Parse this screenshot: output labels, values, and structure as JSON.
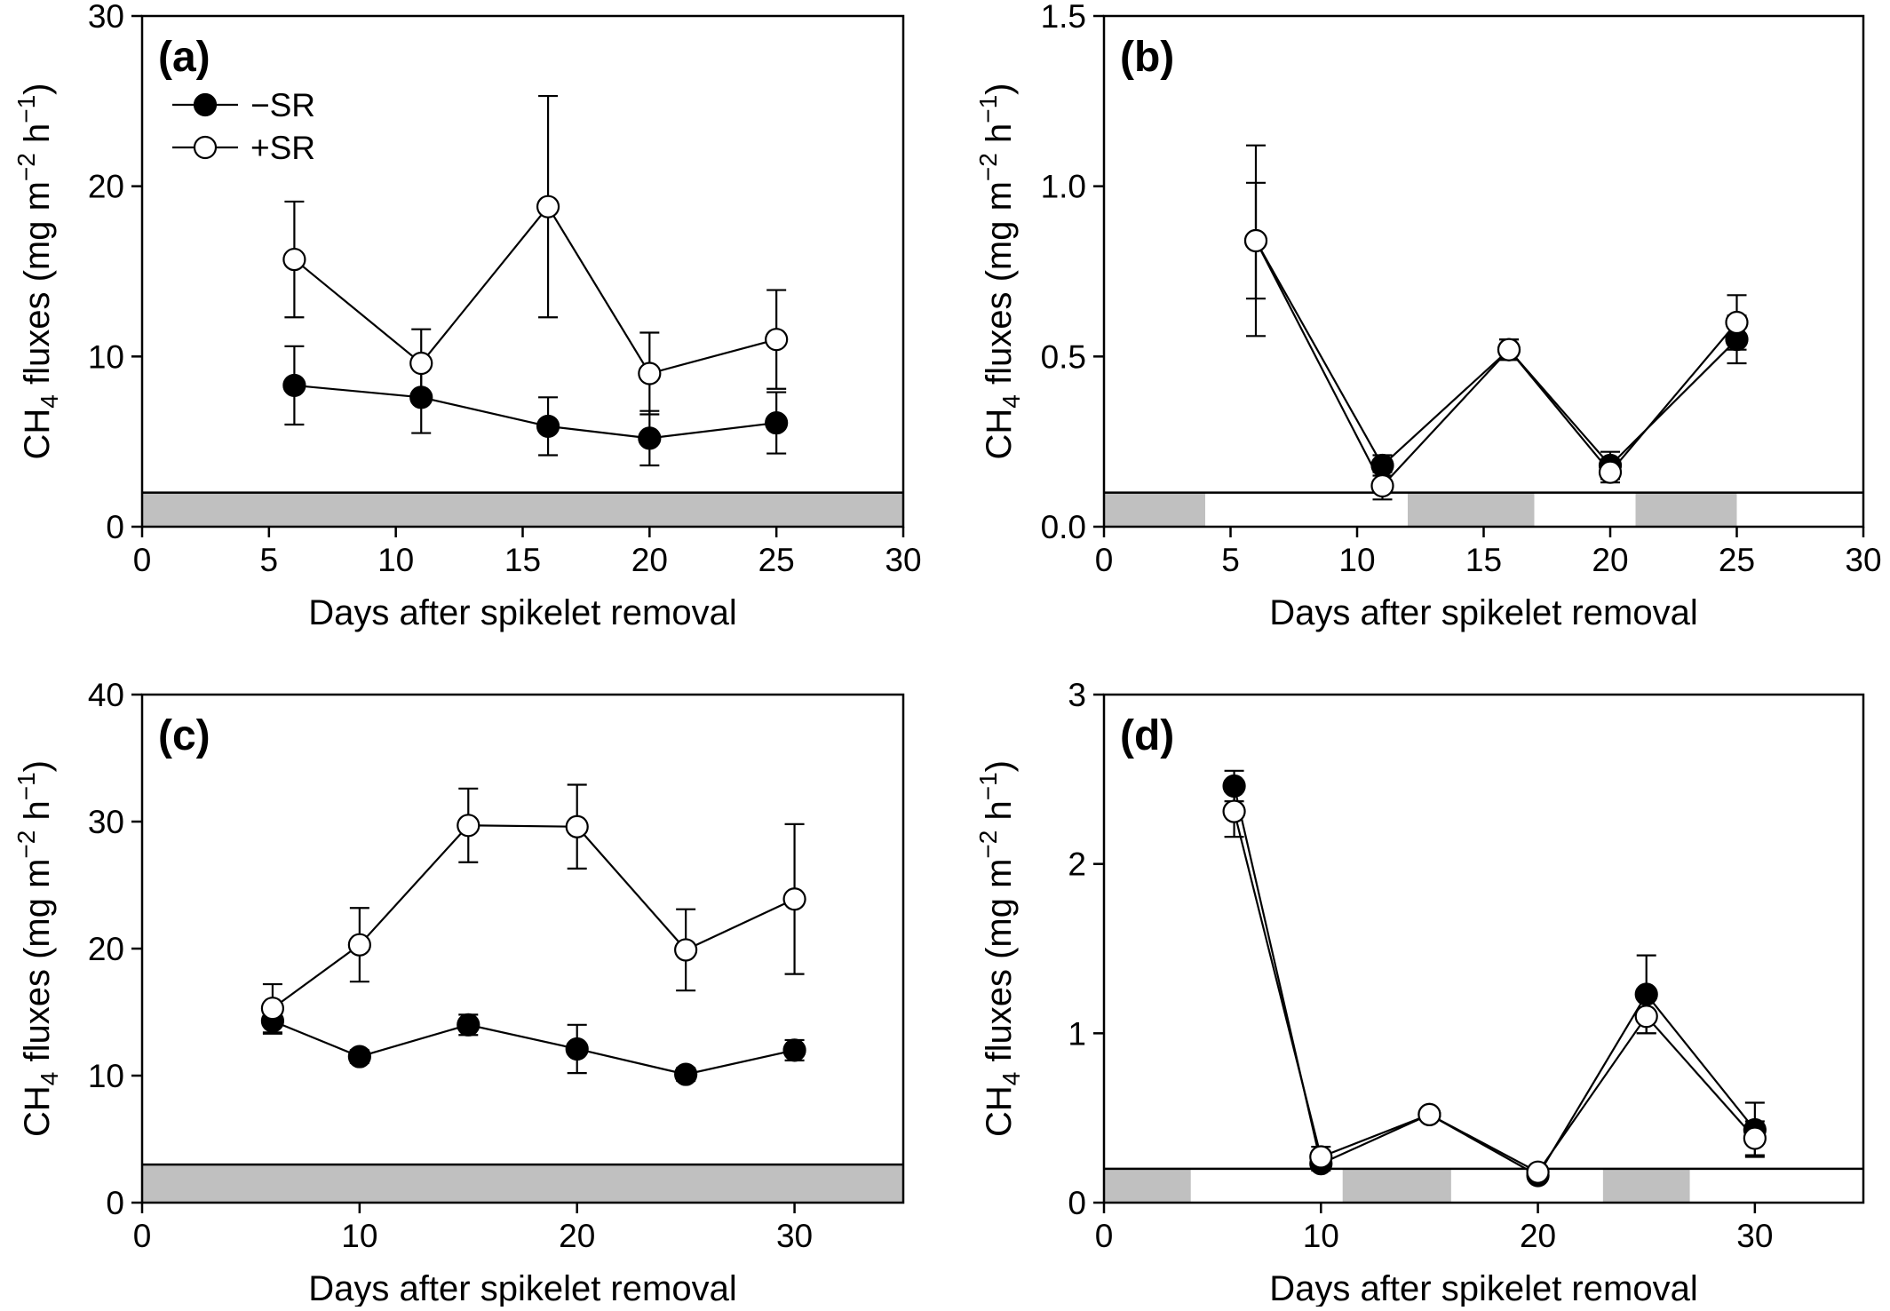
{
  "legend": {
    "items": [
      {
        "label": "−SR",
        "marker": "filled-circle"
      },
      {
        "label": "+SR",
        "marker": "open-circle"
      }
    ]
  },
  "colors": {
    "filled_marker": "#000000",
    "open_marker": "#ffffff",
    "shaded_band": "#c0c0c0",
    "axis": "#000000"
  },
  "chart_data": [
    {
      "type": "line",
      "panel_label": "(a)",
      "xlabel": "Days after spikelet removal",
      "ylabel": {
        "main": "CH",
        "sub": "4",
        "rest": " fluxes (mg m",
        "sup1": "−2",
        "mid": " h",
        "sup2": "−1",
        "end": ")"
      },
      "xlim": [
        0,
        30
      ],
      "ylim": [
        0,
        30
      ],
      "xticks": [
        "0",
        "5",
        "10",
        "15",
        "20",
        "25",
        "30"
      ],
      "yticks": [
        "0",
        "10",
        "20",
        "30"
      ],
      "ytick_values": [
        0,
        10,
        20,
        30
      ],
      "xtick_values": [
        0,
        5,
        10,
        15,
        20,
        25,
        30
      ],
      "baseline_band": {
        "y_top": 2,
        "shaded_x_ranges": [
          [
            0,
            30
          ]
        ]
      },
      "legend_shown": true,
      "series": [
        {
          "name": "−SR",
          "marker": "filled",
          "x": [
            6,
            11,
            16,
            20,
            25
          ],
          "y": [
            8.3,
            7.6,
            5.9,
            5.2,
            6.1
          ],
          "err": [
            2.3,
            2.1,
            1.7,
            1.6,
            1.8
          ]
        },
        {
          "name": "+SR",
          "marker": "open",
          "x": [
            6,
            11,
            16,
            20,
            25
          ],
          "y": [
            15.7,
            9.6,
            18.8,
            9.0,
            11.0
          ],
          "err": [
            3.4,
            2.0,
            6.5,
            2.4,
            2.9
          ]
        }
      ]
    },
    {
      "type": "line",
      "panel_label": "(b)",
      "xlabel": "Days after spikelet removal",
      "ylabel": {
        "main": "CH",
        "sub": "4",
        "rest": " fluxes (mg m",
        "sup1": "−2",
        "mid": " h",
        "sup2": "−1",
        "end": ")"
      },
      "xlim": [
        0,
        30
      ],
      "ylim": [
        0,
        1.5
      ],
      "xticks": [
        "0",
        "5",
        "10",
        "15",
        "20",
        "25",
        "30"
      ],
      "yticks": [
        "0.0",
        "0.5",
        "1.0",
        "1.5"
      ],
      "ytick_values": [
        0,
        0.5,
        1.0,
        1.5
      ],
      "xtick_values": [
        0,
        5,
        10,
        15,
        20,
        25,
        30
      ],
      "baseline_band": {
        "y_top": 0.1,
        "shaded_x_ranges": [
          [
            0,
            4
          ],
          [
            12,
            17
          ],
          [
            21,
            25
          ]
        ]
      },
      "legend_shown": false,
      "series": [
        {
          "name": "−SR",
          "marker": "filled",
          "x": [
            6,
            11,
            16,
            20,
            25
          ],
          "y": [
            0.84,
            0.18,
            0.52,
            0.18,
            0.55
          ],
          "err": [
            0.28,
            0.03,
            0.03,
            0.04,
            0.07
          ]
        },
        {
          "name": "+SR",
          "marker": "open",
          "x": [
            6,
            11,
            16,
            20,
            25
          ],
          "y": [
            0.84,
            0.12,
            0.52,
            0.16,
            0.6
          ],
          "err": [
            0.17,
            0.04,
            0.03,
            0.03,
            0.08
          ]
        }
      ]
    },
    {
      "type": "line",
      "panel_label": "(c)",
      "xlabel": "Days after spikelet removal",
      "ylabel": {
        "main": "CH",
        "sub": "4",
        "rest": " fluxes (mg m",
        "sup1": "−2",
        "mid": " h",
        "sup2": "−1",
        "end": ")"
      },
      "xlim": [
        0,
        35
      ],
      "ylim": [
        0,
        40
      ],
      "xticks": [
        "0",
        "10",
        "20",
        "30"
      ],
      "yticks": [
        "0",
        "10",
        "20",
        "30",
        "40"
      ],
      "ytick_values": [
        0,
        10,
        20,
        30,
        40
      ],
      "xtick_values": [
        0,
        10,
        20,
        30
      ],
      "baseline_band": {
        "y_top": 3,
        "shaded_x_ranges": [
          [
            0,
            35
          ]
        ]
      },
      "legend_shown": false,
      "series": [
        {
          "name": "−SR",
          "marker": "filled",
          "x": [
            6,
            10,
            15,
            20,
            25,
            30
          ],
          "y": [
            14.3,
            11.5,
            14.0,
            12.1,
            10.1,
            12.0
          ],
          "err": [
            1.0,
            0.5,
            0.8,
            1.9,
            0.5,
            0.8
          ]
        },
        {
          "name": "+SR",
          "marker": "open",
          "x": [
            6,
            10,
            15,
            20,
            25,
            30
          ],
          "y": [
            15.3,
            20.3,
            29.7,
            29.6,
            19.9,
            23.9
          ],
          "err": [
            1.9,
            2.9,
            2.9,
            3.3,
            3.2,
            5.9
          ]
        }
      ]
    },
    {
      "type": "line",
      "panel_label": "(d)",
      "xlabel": "Days after spikelet removal",
      "ylabel": {
        "main": "CH",
        "sub": "4",
        "rest": " fluxes (mg m",
        "sup1": "−2",
        "mid": " h",
        "sup2": "−1",
        "end": ")"
      },
      "xlim": [
        0,
        35
      ],
      "ylim": [
        0,
        3
      ],
      "xticks": [
        "0",
        "10",
        "20",
        "30"
      ],
      "yticks": [
        "0",
        "1",
        "2",
        "3"
      ],
      "ytick_values": [
        0,
        1,
        2,
        3
      ],
      "xtick_values": [
        0,
        10,
        20,
        30
      ],
      "baseline_band": {
        "y_top": 0.2,
        "shaded_x_ranges": [
          [
            0,
            4
          ],
          [
            11,
            16
          ],
          [
            23,
            27
          ]
        ]
      },
      "legend_shown": false,
      "series": [
        {
          "name": "−SR",
          "marker": "filled",
          "x": [
            6,
            10,
            15,
            20,
            25,
            30
          ],
          "y": [
            2.46,
            0.23,
            0.52,
            0.16,
            1.23,
            0.43
          ],
          "err": [
            0.09,
            0.04,
            0.02,
            0.02,
            0.23,
            0.16
          ]
        },
        {
          "name": "+SR",
          "marker": "open",
          "x": [
            6,
            10,
            15,
            20,
            25,
            30
          ],
          "y": [
            2.31,
            0.27,
            0.52,
            0.18,
            1.1,
            0.38
          ],
          "err": [
            0.15,
            0.06,
            0.02,
            0.02,
            0.1,
            0.1
          ]
        }
      ]
    }
  ]
}
